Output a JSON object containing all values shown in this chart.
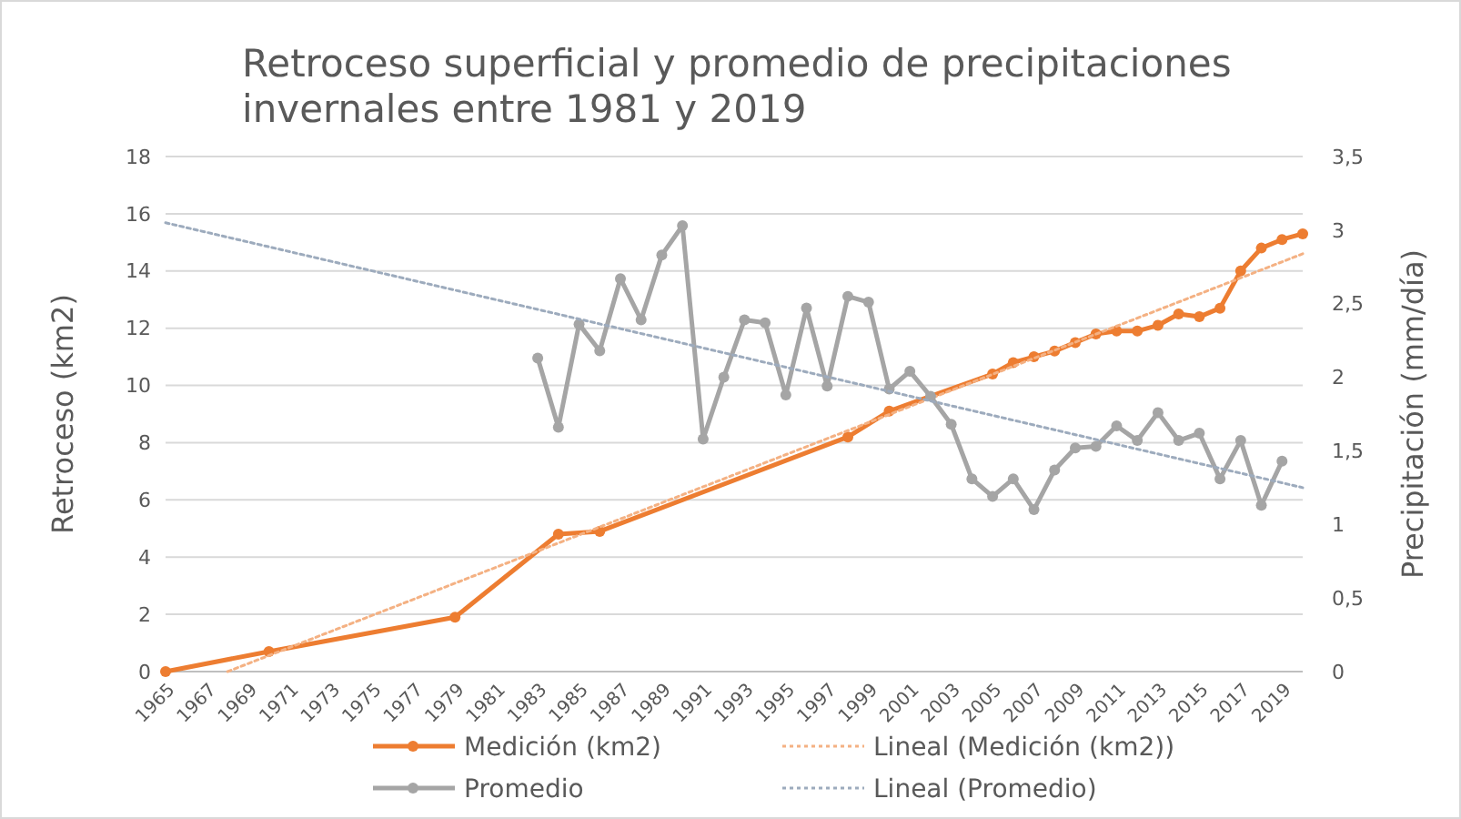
{
  "chart_data": {
    "type": "line",
    "title": "Retroceso superficial y promedio de precipitaciones invernales entre 1981 y 2019",
    "ylabel": "Retroceso (km2)",
    "y2label": "Precipitación (mm/día)",
    "categories": [
      "1965",
      null,
      "1967",
      null,
      "1969",
      null,
      "1971",
      null,
      "1973",
      null,
      "1975",
      null,
      "1977",
      null,
      "1979",
      null,
      "1981",
      null,
      "1983",
      null,
      "1985",
      null,
      "1987",
      null,
      "1989",
      null,
      "1991",
      null,
      "1993",
      null,
      "1995",
      null,
      "1997",
      null,
      "1999",
      null,
      "2001",
      null,
      "2003",
      null,
      "2005",
      null,
      "2007",
      null,
      "2009",
      null,
      "2011",
      null,
      "2013",
      null,
      "2015",
      null,
      "2017",
      null,
      "2019",
      null
    ],
    "series": [
      {
        "name": "Medición (km2)",
        "color": "#ed7d31",
        "marker": "circle",
        "line_style": "solid",
        "values": [
          0,
          null,
          null,
          null,
          null,
          0.7,
          null,
          null,
          null,
          null,
          null,
          null,
          null,
          null,
          1.9,
          null,
          null,
          null,
          null,
          4.8,
          null,
          4.9,
          null,
          null,
          null,
          null,
          null,
          null,
          null,
          null,
          null,
          null,
          null,
          8.2,
          null,
          9.1,
          null,
          null,
          null,
          null,
          10.4,
          10.8,
          11.0,
          11.2,
          11.5,
          11.8,
          11.9,
          11.9,
          12.1,
          12.5,
          12.4,
          12.7,
          14.0,
          14.8,
          15.1,
          15.3
        ]
      },
      {
        "name": "Lineal (Medición (km2))",
        "color": "#f4b183",
        "marker": "none",
        "line_style": "dotted",
        "values": [
          null,
          null,
          null,
          0,
          null,
          null,
          null,
          null,
          null,
          null,
          null,
          null,
          null,
          null,
          null,
          null,
          null,
          null,
          null,
          null,
          null,
          null,
          null,
          null,
          null,
          null,
          null,
          null,
          null,
          null,
          null,
          null,
          null,
          null,
          null,
          null,
          null,
          null,
          null,
          null,
          null,
          null,
          null,
          null,
          null,
          null,
          null,
          null,
          null,
          null,
          null,
          null,
          null,
          null,
          null,
          14.6
        ]
      },
      {
        "name": "Promedio",
        "color": "#a5a5a5",
        "marker": "circle",
        "line_style": "solid",
        "axis": "y2",
        "values": [
          null,
          null,
          null,
          null,
          null,
          null,
          null,
          null,
          null,
          null,
          null,
          null,
          null,
          null,
          null,
          null,
          null,
          null,
          2.13,
          1.66,
          2.36,
          2.18,
          2.67,
          2.39,
          2.83,
          3.03,
          1.58,
          2.0,
          2.39,
          2.37,
          1.88,
          2.47,
          1.94,
          2.55,
          2.51,
          1.92,
          2.04,
          1.87,
          1.68,
          1.31,
          1.19,
          1.31,
          1.1,
          1.37,
          1.52,
          1.53,
          1.67,
          1.57,
          1.76,
          1.57,
          1.62,
          1.31,
          1.57,
          1.13,
          1.43,
          null
        ]
      },
      {
        "name": "Lineal (Promedio)",
        "color": "#9dabbd",
        "marker": "none",
        "line_style": "dotted",
        "axis": "y2",
        "values": [
          3.05,
          null,
          null,
          null,
          null,
          null,
          null,
          null,
          null,
          null,
          null,
          null,
          null,
          null,
          null,
          null,
          null,
          null,
          null,
          null,
          null,
          null,
          null,
          null,
          null,
          null,
          null,
          null,
          null,
          null,
          null,
          null,
          null,
          null,
          null,
          null,
          null,
          null,
          null,
          null,
          null,
          null,
          null,
          null,
          null,
          null,
          null,
          null,
          null,
          null,
          null,
          null,
          null,
          null,
          null,
          1.25
        ]
      }
    ],
    "ylim": [
      0,
      18
    ],
    "yticks": [
      0,
      2,
      4,
      6,
      8,
      10,
      12,
      14,
      16,
      18
    ],
    "y2lim": [
      0,
      3.5
    ],
    "y2ticks": [
      0,
      {
        "value": 0.5,
        "label": "0,5"
      },
      1,
      {
        "value": 1.5,
        "label": "1,5"
      },
      2,
      {
        "value": 2.5,
        "label": "2,5"
      },
      3,
      {
        "value": 3.5,
        "label": "3,5"
      }
    ],
    "grid": "y",
    "legend": "bottom"
  }
}
